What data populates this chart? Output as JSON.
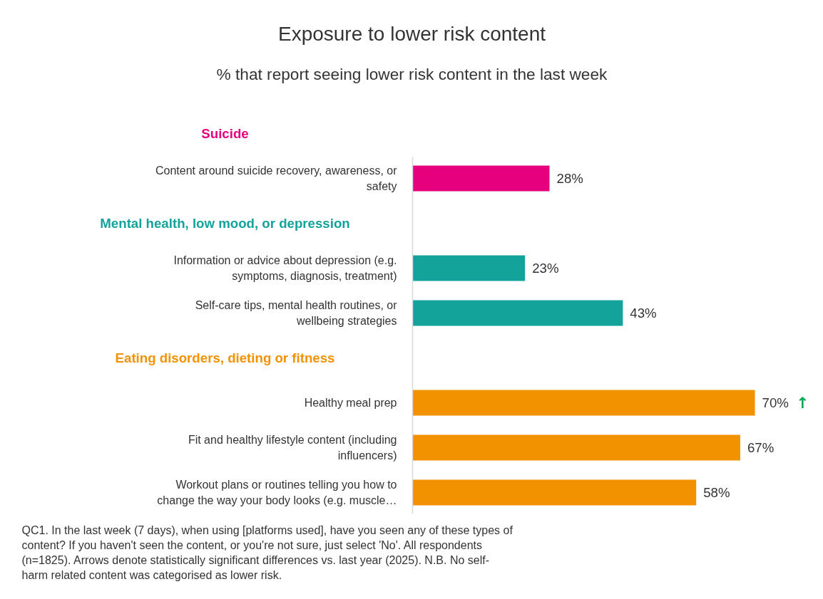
{
  "chart_data": {
    "type": "bar",
    "orientation": "horizontal",
    "title": "Exposure to lower risk content",
    "subtitle": "% that report seeing lower risk content in the last week",
    "categories": [
      "Content around suicide recovery, awareness, or safety",
      "Information or advice about depression (e.g. symptoms, diagnosis, treatment)",
      "Self-care tips, mental health routines, or wellbeing strategies",
      "Healthy meal prep",
      "Fit and healthy lifestyle content (including influencers)",
      "Workout plans or routines telling you how to change the way your body looks (e.g. muscle…"
    ],
    "series": [
      {
        "name": "Suicide",
        "color": "#e6007e",
        "values": [
          28,
          null,
          null,
          null,
          null,
          null
        ],
        "value_labels": [
          "28%",
          null,
          null,
          null,
          null,
          null
        ]
      },
      {
        "name": "Mental health, low mood, or depression",
        "color": "#13a39a",
        "values": [
          null,
          23,
          43,
          null,
          null,
          null
        ],
        "value_labels": [
          null,
          "23%",
          "43%",
          null,
          null,
          null
        ]
      },
      {
        "name": "Eating disorders, dieting or fitness",
        "color": "#f39200",
        "values": [
          null,
          null,
          null,
          70,
          67,
          58
        ],
        "value_labels": [
          null,
          null,
          null,
          "70%",
          "67%",
          "58%"
        ]
      }
    ],
    "annotations": [
      {
        "text": "↑",
        "x": 70,
        "y": "Healthy meal prep"
      },
      "QC1. In the last week (7 days), when using [platforms used], have you seen any of these types of content? If you haven't seen the content, or you're not sure, just select 'No'. All respondents (n=1825). Arrows denote statistically significant differences vs. last year (2025). N.B. No self-harm related content was categorised as lower risk."
    ]
  }
}
